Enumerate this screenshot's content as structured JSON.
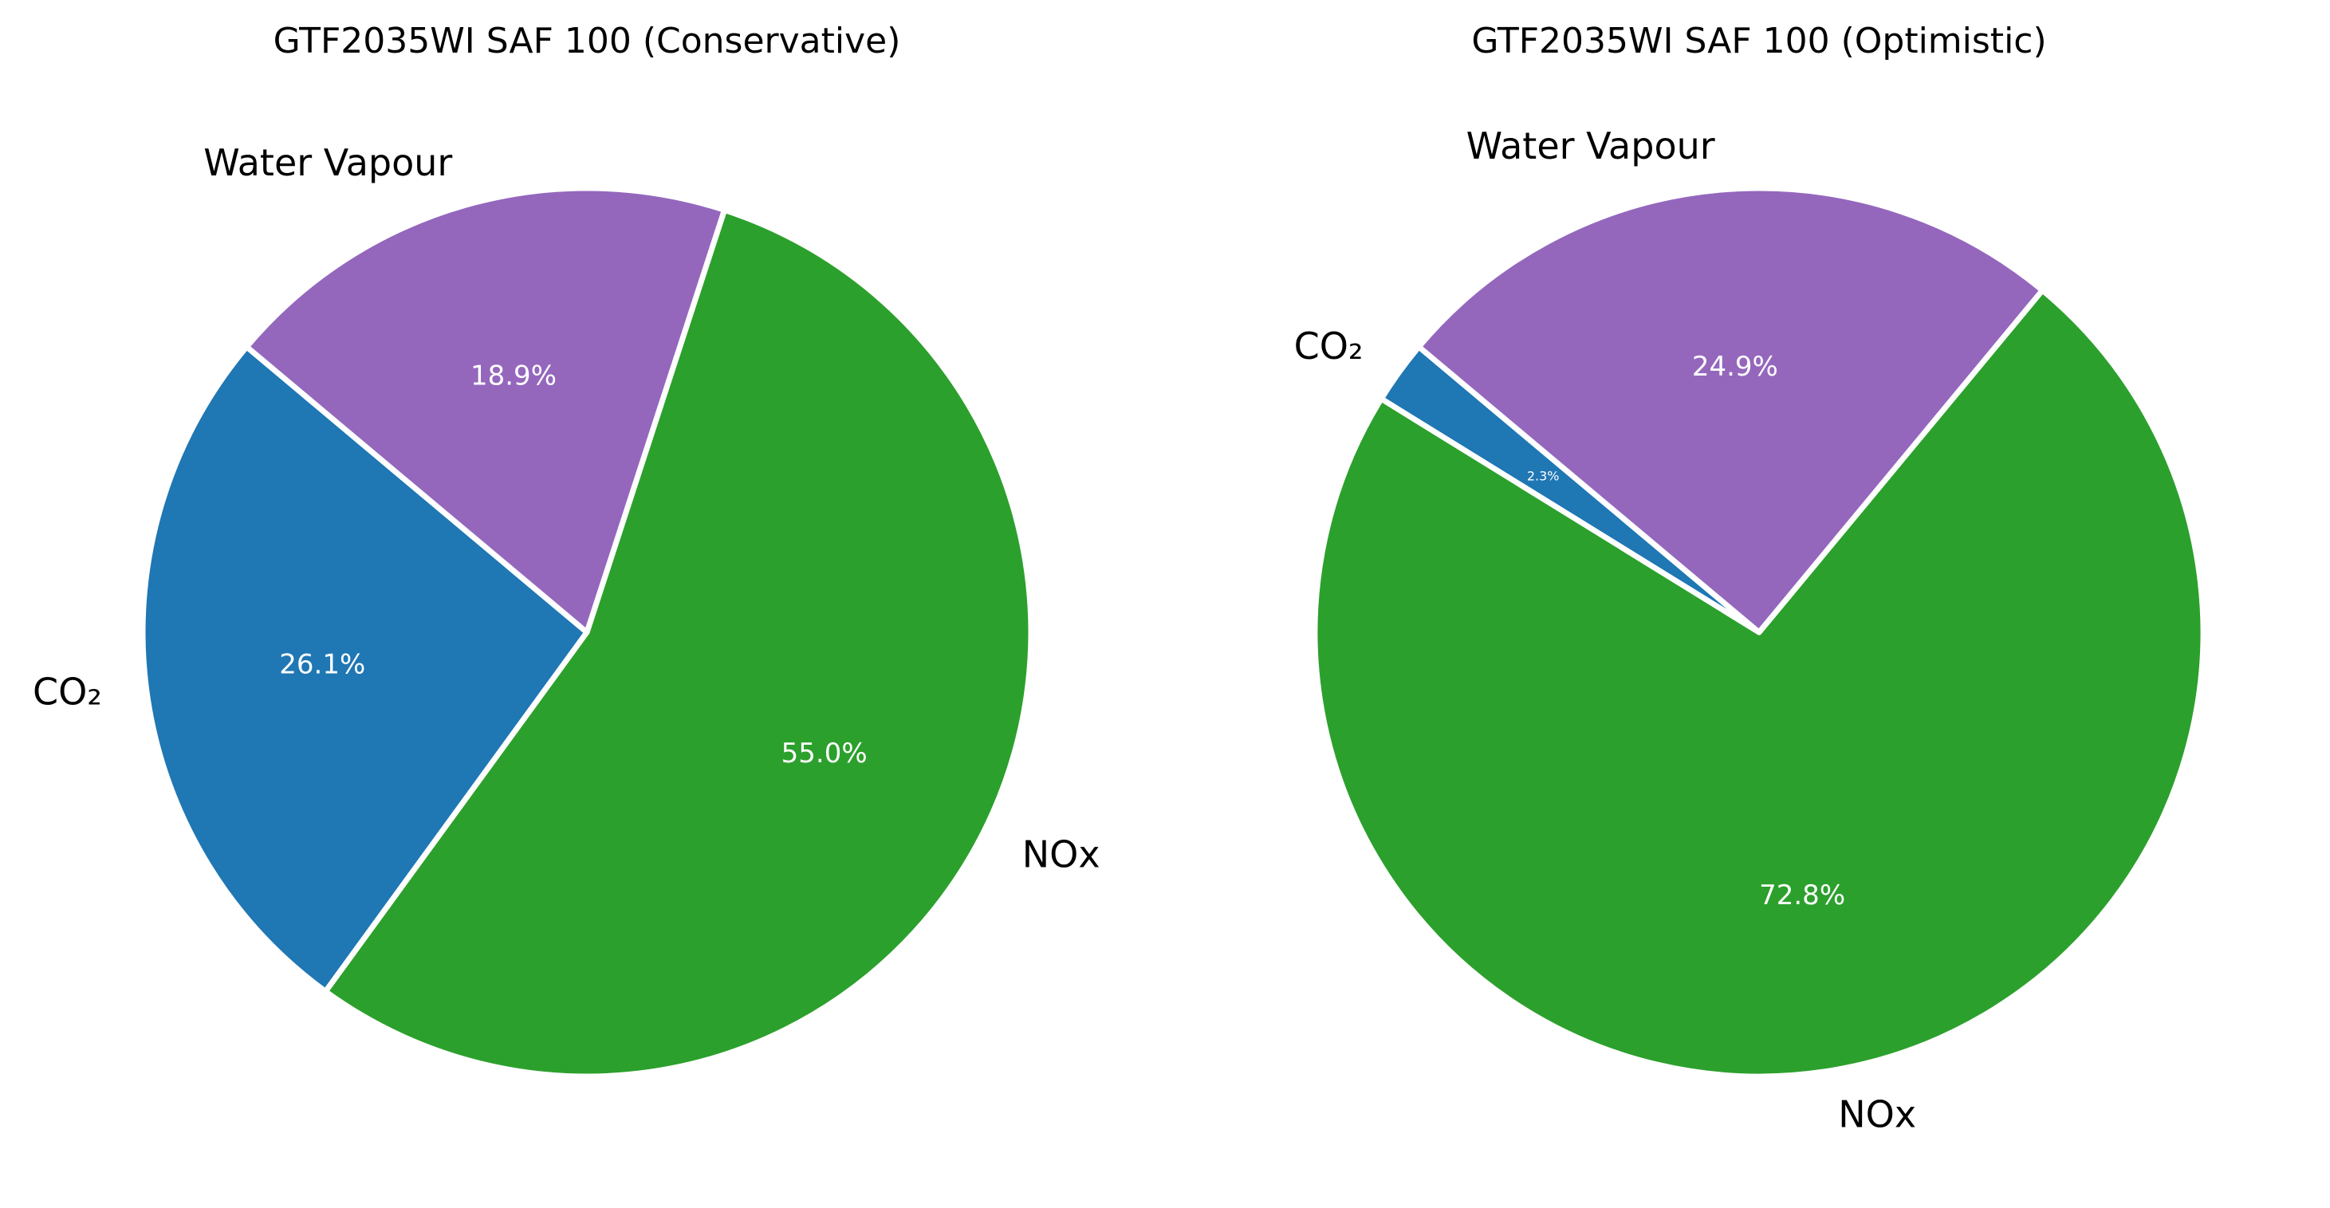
{
  "chart_data": [
    {
      "type": "pie",
      "title": "GTF2035WI SAF 100 (Conservative)",
      "start_angle_deg": 140,
      "direction": "counterclockwise",
      "slices": [
        {
          "label": "CO₂",
          "value": 26.1,
          "pct_label": "26.1%",
          "color": "#1f77b4"
        },
        {
          "label": "NOx",
          "value": 55.0,
          "pct_label": "55.0%",
          "color": "#2ca02c"
        },
        {
          "label": "Water Vapour",
          "value": 18.9,
          "pct_label": "18.9%",
          "color": "#9467bd"
        }
      ]
    },
    {
      "type": "pie",
      "title": "GTF2035WI SAF 100 (Optimistic)",
      "start_angle_deg": 140,
      "direction": "counterclockwise",
      "slices": [
        {
          "label": "CO₂",
          "value": 2.3,
          "pct_label": "2.3%",
          "color": "#1f77b4"
        },
        {
          "label": "NOx",
          "value": 72.8,
          "pct_label": "72.8%",
          "color": "#2ca02c"
        },
        {
          "label": "Water Vapour",
          "value": 24.9,
          "pct_label": "24.9%",
          "color": "#9467bd"
        }
      ]
    }
  ],
  "wedge_edge_color": "#ffffff"
}
